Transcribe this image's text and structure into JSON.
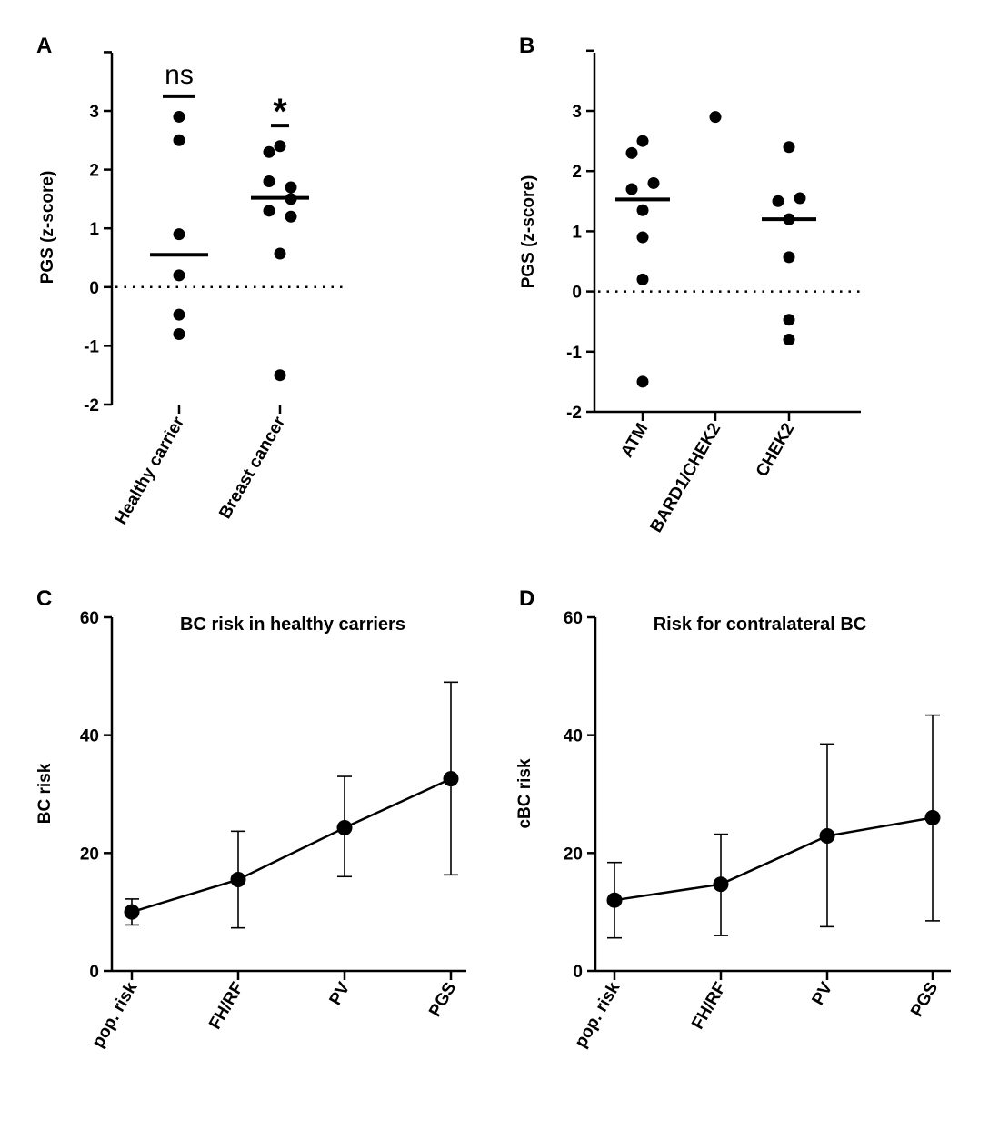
{
  "chart_data": [
    {
      "panel": "A",
      "type": "scatter",
      "ylabel": "PGS (z-score)",
      "ylim": [
        -2,
        4
      ],
      "yticks": [
        3,
        2,
        1,
        0,
        -1,
        -2
      ],
      "categories": [
        "Healthy carrier",
        "Breast cancer"
      ],
      "groups": [
        {
          "name": "Healthy carrier",
          "points": [
            2.9,
            2.5,
            0.9,
            0.2,
            -0.47,
            -0.8
          ],
          "mean": 0.55,
          "annotation": "ns",
          "annotation_y": 3.25
        },
        {
          "name": "Breast cancer",
          "points": [
            2.4,
            2.3,
            1.7,
            1.8,
            1.2,
            1.3,
            1.5,
            0.57,
            -1.5
          ],
          "mean": 1.52,
          "annotation": "*",
          "annotation_y": 2.75
        }
      ],
      "reference_line": 0
    },
    {
      "panel": "B",
      "type": "scatter",
      "ylabel": "PGS (z-score)",
      "ylim": [
        -2,
        4
      ],
      "yticks": [
        3,
        2,
        1,
        0,
        -1,
        -2
      ],
      "categories": [
        "ATM",
        "BARD1/CHEK2",
        "CHEK2"
      ],
      "groups": [
        {
          "name": "ATM",
          "points": [
            2.5,
            2.3,
            1.8,
            1.7,
            1.35,
            0.9,
            0.2,
            -1.5
          ],
          "mean": 1.53
        },
        {
          "name": "BARD1/CHEK2",
          "points": [
            2.9
          ],
          "mean": null
        },
        {
          "name": "CHEK2",
          "points": [
            2.4,
            1.55,
            1.5,
            1.2,
            0.57,
            -0.47,
            -0.8
          ],
          "mean": 1.2
        }
      ],
      "reference_line": 0
    },
    {
      "panel": "C",
      "type": "line",
      "title": "BC risk in healthy carriers",
      "ylabel": "BC risk",
      "ylim": [
        0,
        60
      ],
      "yticks": [
        60,
        40,
        20,
        0
      ],
      "categories": [
        "pop. risk",
        "FH/RF",
        "PV",
        "PGS"
      ],
      "values": [
        10,
        15.5,
        24.3,
        32.6
      ],
      "error_low": [
        7.8,
        7.3,
        16,
        16.3
      ],
      "error_high": [
        12.2,
        23.7,
        33,
        49
      ]
    },
    {
      "panel": "D",
      "type": "line",
      "title": "Risk for contralateral BC",
      "ylabel": "cBC risk",
      "ylim": [
        0,
        60
      ],
      "yticks": [
        60,
        40,
        20,
        0
      ],
      "categories": [
        "pop. risk",
        "FH/RF",
        "PV",
        "PGS"
      ],
      "values": [
        12,
        14.7,
        22.9,
        26
      ],
      "error_low": [
        5.6,
        6,
        7.5,
        8.5
      ],
      "error_high": [
        18.4,
        23.2,
        38.5,
        43.4
      ]
    }
  ]
}
